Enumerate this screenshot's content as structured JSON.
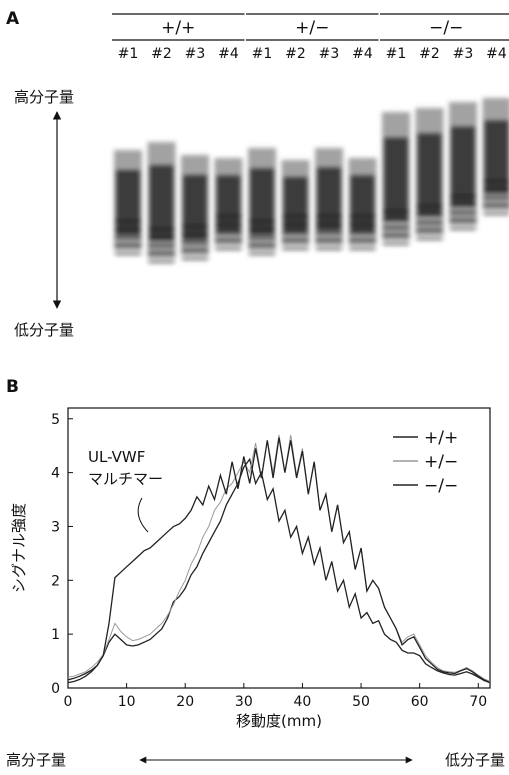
{
  "panel_a": {
    "label": "A",
    "groups": [
      "+/+",
      "+/−",
      "−/−"
    ],
    "lanes": [
      "#1",
      "#2",
      "#3",
      "#4",
      "#1",
      "#2",
      "#3",
      "#4",
      "#1",
      "#2",
      "#3",
      "#4"
    ],
    "high": "高分子量",
    "low": "低分子量"
  },
  "panel_b_label": "B",
  "chart_data": {
    "type": "line",
    "xlabel": "移動度(mm)",
    "ylabel": "シグナル強度",
    "annotation": [
      "UL-VWF",
      "マルチマー"
    ],
    "x_arrow_labels": [
      "高分子量",
      "低分子量"
    ],
    "xlim": [
      0,
      72
    ],
    "ylim": [
      0,
      5.2
    ],
    "xticks": [
      0,
      10,
      20,
      30,
      40,
      50,
      60,
      70
    ],
    "yticks": [
      0,
      1,
      2,
      3,
      4,
      5
    ],
    "x": [
      0,
      1,
      2,
      3,
      4,
      5,
      6,
      7,
      8,
      9,
      10,
      11,
      12,
      13,
      14,
      15,
      16,
      17,
      18,
      19,
      20,
      21,
      22,
      23,
      24,
      25,
      26,
      27,
      28,
      29,
      30,
      31,
      32,
      33,
      34,
      35,
      36,
      37,
      38,
      39,
      40,
      41,
      42,
      43,
      44,
      45,
      46,
      47,
      48,
      49,
      50,
      51,
      52,
      53,
      54,
      55,
      56,
      57,
      58,
      59,
      60,
      61,
      62,
      63,
      64,
      65,
      66,
      67,
      68,
      69,
      70,
      71,
      72
    ],
    "series": [
      {
        "name": "+/+",
        "color": "#222222",
        "values": [
          0.1,
          0.12,
          0.16,
          0.22,
          0.3,
          0.42,
          0.6,
          0.85,
          1.0,
          0.9,
          0.8,
          0.78,
          0.8,
          0.85,
          0.9,
          1.0,
          1.1,
          1.3,
          1.6,
          1.7,
          1.85,
          2.1,
          2.25,
          2.5,
          2.7,
          2.9,
          3.1,
          3.4,
          3.6,
          3.8,
          4.1,
          4.25,
          3.8,
          4.0,
          3.5,
          3.7,
          3.1,
          3.3,
          2.8,
          3.0,
          2.5,
          2.8,
          2.3,
          2.6,
          2.0,
          2.35,
          1.8,
          2.0,
          1.5,
          1.75,
          1.3,
          1.4,
          1.2,
          1.25,
          1.0,
          0.9,
          0.85,
          0.7,
          0.65,
          0.65,
          0.6,
          0.45,
          0.38,
          0.32,
          0.28,
          0.25,
          0.24,
          0.27,
          0.3,
          0.26,
          0.2,
          0.14,
          0.1
        ]
      },
      {
        "name": "+/−",
        "color": "#9a9a9a",
        "values": [
          0.2,
          0.22,
          0.26,
          0.3,
          0.38,
          0.48,
          0.62,
          0.9,
          1.2,
          1.05,
          0.95,
          0.88,
          0.9,
          0.95,
          1.0,
          1.1,
          1.2,
          1.35,
          1.55,
          1.8,
          2.0,
          2.3,
          2.5,
          2.8,
          3.0,
          3.3,
          3.45,
          3.7,
          3.8,
          4.0,
          4.2,
          4.0,
          4.55,
          3.9,
          4.6,
          4.0,
          4.7,
          4.0,
          4.7,
          3.95,
          4.45,
          3.6,
          4.2,
          3.3,
          3.6,
          2.9,
          3.4,
          2.7,
          2.9,
          2.2,
          2.6,
          1.8,
          2.0,
          1.85,
          1.5,
          1.3,
          1.1,
          0.85,
          0.95,
          1.0,
          0.8,
          0.6,
          0.48,
          0.38,
          0.32,
          0.3,
          0.29,
          0.33,
          0.38,
          0.32,
          0.24,
          0.17,
          0.12
        ]
      },
      {
        "name": "−/−",
        "color": "#222222",
        "values": [
          0.15,
          0.18,
          0.22,
          0.27,
          0.33,
          0.42,
          0.6,
          1.2,
          2.05,
          2.15,
          2.25,
          2.35,
          2.45,
          2.55,
          2.6,
          2.7,
          2.8,
          2.9,
          3.0,
          3.05,
          3.15,
          3.3,
          3.55,
          3.4,
          3.75,
          3.5,
          3.95,
          3.6,
          4.2,
          3.7,
          4.3,
          3.8,
          4.45,
          3.9,
          4.6,
          3.9,
          4.65,
          4.0,
          4.6,
          3.9,
          4.4,
          3.6,
          4.2,
          3.3,
          3.6,
          2.9,
          3.4,
          2.7,
          2.9,
          2.2,
          2.6,
          1.8,
          2.0,
          1.85,
          1.5,
          1.3,
          1.1,
          0.8,
          0.9,
          0.95,
          0.75,
          0.55,
          0.45,
          0.35,
          0.3,
          0.28,
          0.27,
          0.32,
          0.36,
          0.3,
          0.22,
          0.15,
          0.1
        ]
      }
    ]
  }
}
